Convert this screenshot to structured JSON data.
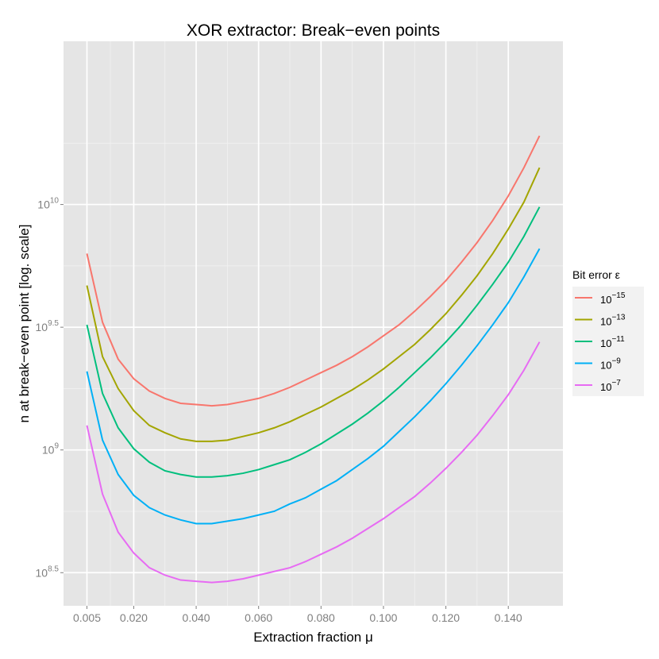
{
  "chart_data": {
    "type": "line",
    "title": "XOR extractor: Break−even points",
    "xlabel": "Extraction fraction μ",
    "ylabel": "n at break−even point [log. scale]",
    "y_scale": "log10",
    "xlim": [
      -0.0025,
      0.1575
    ],
    "ylim_log10": [
      8.365,
      10.665
    ],
    "x_ticks": [
      0.005,
      0.02,
      0.04,
      0.06,
      0.08,
      0.1,
      0.12,
      0.14
    ],
    "x_tick_labels": [
      "0.005",
      "0.020",
      "0.040",
      "0.060",
      "0.080",
      "0.100",
      "0.120",
      "0.140"
    ],
    "y_ticks_log10": [
      8.5,
      9,
      9.5,
      10
    ],
    "y_tick_labels": [
      {
        "base": "10",
        "exp": "8.5"
      },
      {
        "base": "10",
        "exp": "9"
      },
      {
        "base": "10",
        "exp": "9.5"
      },
      {
        "base": "10",
        "exp": "10"
      }
    ],
    "grid": true,
    "background": "#e5e5e5",
    "legend": {
      "title": "Bit error ε",
      "position": "right",
      "entries": [
        {
          "base": "10",
          "exp": "−15",
          "color": "#f8766d"
        },
        {
          "base": "10",
          "exp": "−13",
          "color": "#a3a500"
        },
        {
          "base": "10",
          "exp": "−11",
          "color": "#00bf7d"
        },
        {
          "base": "10",
          "exp": "−9",
          "color": "#00b0f6"
        },
        {
          "base": "10",
          "exp": "−7",
          "color": "#e76bf3"
        }
      ]
    },
    "x": [
      0.005,
      0.01,
      0.015,
      0.02,
      0.025,
      0.03,
      0.035,
      0.04,
      0.045,
      0.05,
      0.055,
      0.06,
      0.065,
      0.07,
      0.075,
      0.08,
      0.085,
      0.09,
      0.095,
      0.1,
      0.105,
      0.11,
      0.115,
      0.12,
      0.125,
      0.13,
      0.135,
      0.14,
      0.145,
      0.15
    ],
    "series": [
      {
        "name": "ε = 10^−15",
        "color": "#f8766d",
        "log10_values": [
          9.8,
          9.52,
          9.37,
          9.29,
          9.24,
          9.21,
          9.19,
          9.185,
          9.18,
          9.185,
          9.197,
          9.21,
          9.23,
          9.255,
          9.285,
          9.315,
          9.345,
          9.38,
          9.42,
          9.465,
          9.51,
          9.565,
          9.625,
          9.69,
          9.765,
          9.845,
          9.935,
          10.035,
          10.15,
          10.28
        ]
      },
      {
        "name": "ε = 10^−13",
        "color": "#a3a500",
        "log10_values": [
          9.67,
          9.38,
          9.25,
          9.16,
          9.1,
          9.07,
          9.045,
          9.035,
          9.035,
          9.04,
          9.055,
          9.07,
          9.09,
          9.115,
          9.145,
          9.175,
          9.21,
          9.245,
          9.285,
          9.33,
          9.38,
          9.43,
          9.49,
          9.555,
          9.63,
          9.71,
          9.8,
          9.9,
          10.01,
          10.15
        ]
      },
      {
        "name": "ε = 10^−11",
        "color": "#00bf7d",
        "log10_values": [
          9.51,
          9.23,
          9.09,
          9.005,
          8.95,
          8.915,
          8.9,
          8.89,
          8.89,
          8.895,
          8.905,
          8.92,
          8.94,
          8.96,
          8.99,
          9.025,
          9.065,
          9.105,
          9.15,
          9.2,
          9.255,
          9.315,
          9.375,
          9.44,
          9.51,
          9.59,
          9.675,
          9.765,
          9.87,
          9.99
        ]
      },
      {
        "name": "ε = 10^−9",
        "color": "#00b0f6",
        "log10_values": [
          9.32,
          9.04,
          8.9,
          8.815,
          8.765,
          8.735,
          8.715,
          8.7,
          8.7,
          8.71,
          8.72,
          8.735,
          8.75,
          8.78,
          8.805,
          8.84,
          8.875,
          8.92,
          8.965,
          9.015,
          9.075,
          9.135,
          9.2,
          9.27,
          9.345,
          9.425,
          9.51,
          9.6,
          9.705,
          9.82
        ]
      },
      {
        "name": "ε = 10^−7",
        "color": "#e76bf3",
        "log10_values": [
          9.1,
          8.82,
          8.665,
          8.58,
          8.52,
          8.49,
          8.47,
          8.465,
          8.46,
          8.465,
          8.475,
          8.49,
          8.505,
          8.52,
          8.545,
          8.575,
          8.605,
          8.64,
          8.68,
          8.72,
          8.765,
          8.81,
          8.865,
          8.925,
          8.99,
          9.06,
          9.14,
          9.225,
          9.325,
          9.44
        ]
      }
    ]
  }
}
